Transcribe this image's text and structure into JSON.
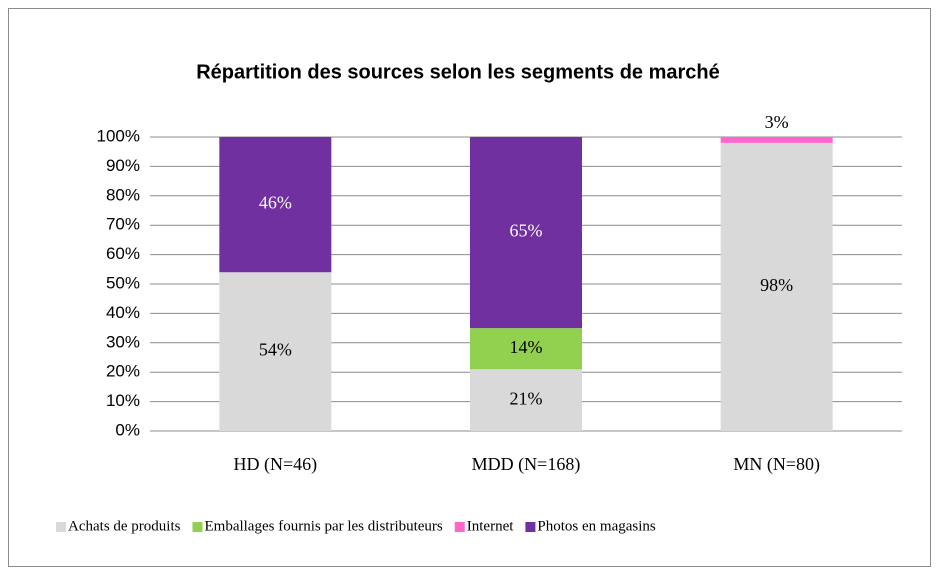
{
  "chart_data": {
    "type": "stacked_bar",
    "title": "Répartition des sources selon les segments de marché",
    "categories": [
      "HD (N=46)",
      "MDD (N=168)",
      "MN (N=80)"
    ],
    "series": [
      {
        "name": "Achats de produits",
        "color": "#d9d9d9",
        "values": [
          54,
          21,
          98
        ],
        "value_labels": [
          "54%",
          "21%",
          "98%"
        ]
      },
      {
        "name": "Emballages fournis par les distributeurs",
        "color": "#92d050",
        "values": [
          0,
          14,
          0
        ],
        "value_labels": [
          null,
          "14%",
          null
        ]
      },
      {
        "name": "Internet",
        "color": "#ff66cc",
        "values": [
          0,
          0,
          3
        ],
        "value_labels": [
          null,
          null,
          "3%"
        ]
      },
      {
        "name": "Photos en magasins",
        "color": "#7030a0",
        "values": [
          46,
          65,
          0
        ],
        "value_labels": [
          "46%",
          "65%",
          null
        ]
      }
    ],
    "ylim": [
      0,
      100
    ],
    "yticks": [
      {
        "value": 0,
        "label": "0%"
      },
      {
        "value": 10,
        "label": "10%"
      },
      {
        "value": 20,
        "label": "20%"
      },
      {
        "value": 30,
        "label": "30%"
      },
      {
        "value": 40,
        "label": "40%"
      },
      {
        "value": 50,
        "label": "50%"
      },
      {
        "value": 60,
        "label": "60%"
      },
      {
        "value": 70,
        "label": "70%"
      },
      {
        "value": 80,
        "label": "80%"
      },
      {
        "value": 90,
        "label": "90%"
      },
      {
        "value": 100,
        "label": "100%"
      }
    ],
    "grid": true,
    "legend": "bottom"
  }
}
